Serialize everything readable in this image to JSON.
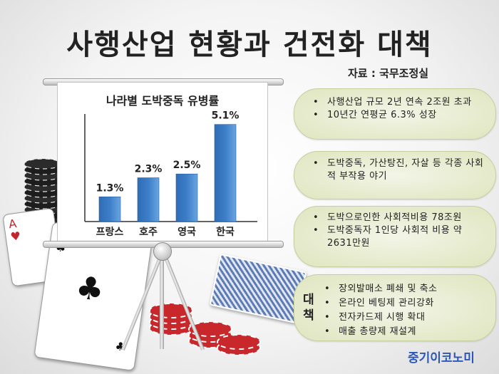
{
  "title": "사행산업 현황과 건전화 대책",
  "source": "자료 : 국무조정실",
  "brand": "중기이코노미",
  "chart_data": {
    "type": "bar",
    "title": "나라별 도박중독 유병률",
    "categories": [
      "프랑스",
      "호주",
      "영국",
      "한국"
    ],
    "values": [
      1.3,
      2.3,
      2.5,
      5.1
    ],
    "value_labels": [
      "1.3%",
      "2.3%",
      "2.5%",
      "5.1%"
    ],
    "unit": "%",
    "ylim": [
      0,
      5.5
    ],
    "grid": false,
    "bar_color": "#3d7ec9"
  },
  "panels": [
    {
      "items": [
        "사행산업 규모 2년 연속 2조원 초과",
        "10년간 연평균 6.3% 성장"
      ]
    },
    {
      "items": [
        "도박중독, 가산탕진, 자살 등 각종 사회적 부작용 야기"
      ]
    },
    {
      "items": [
        "도박으로인한 사회적비용 78조원",
        "도박중독자 1인당 사회적 비용 약 2631만원"
      ]
    }
  ],
  "measures": {
    "label": "대책",
    "items": [
      "장외발매소 폐쇄 및 축소",
      "온라인 베팅제 관리강화",
      "전자카드제 시행 확대",
      "매출 총량제 재설계"
    ]
  },
  "decor": {
    "icons": [
      "poker-chip-stack-icon",
      "playing-card-ace-spade-icon",
      "playing-card-ace-club-icon",
      "card-deck-icon",
      "poker-chips-red-icon",
      "presentation-stand-icon"
    ]
  }
}
